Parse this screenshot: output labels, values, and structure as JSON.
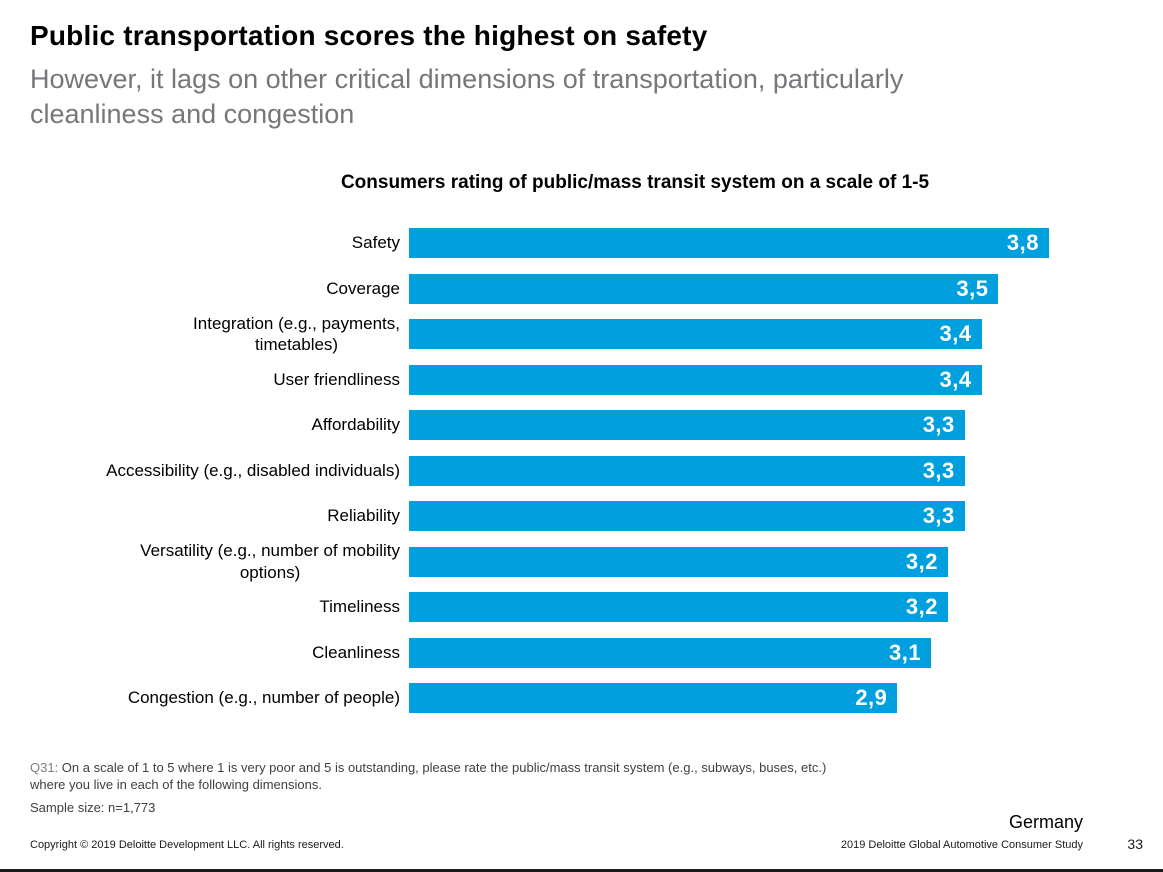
{
  "slide": {
    "title": "Public transportation scores the highest on safety",
    "subtitle": "However, it lags on other critical dimensions of transportation, particularly cleanliness and congestion",
    "footnote_prefix": "Q31:",
    "footnote_text": " On a scale of 1 to 5 where 1 is very poor and 5 is outstanding, please rate the public/mass transit system (e.g., subways, buses, etc.) where you live in each of the following dimensions.",
    "sample_size": "Sample size: n=1,773",
    "country": "Germany",
    "copyright": "Copyright © 2019 Deloitte Development LLC. All rights reserved.",
    "study": "2019 Deloitte Global Automotive Consumer Study",
    "page_number": "33"
  },
  "chart_data": {
    "type": "bar",
    "orientation": "horizontal",
    "title": "Consumers rating of public/mass transit system on a scale of 1-5",
    "categories": [
      "Safety",
      "Coverage",
      "Integration (e.g., payments,\ntimetables)",
      "User friendliness",
      "Affordability",
      "Accessibility (e.g., disabled individuals)",
      "Reliability",
      "Versatility (e.g., number of mobility\noptions)",
      "Timeliness",
      "Cleanliness",
      "Congestion (e.g., number of people)"
    ],
    "values": [
      3.8,
      3.5,
      3.4,
      3.4,
      3.3,
      3.3,
      3.3,
      3.2,
      3.2,
      3.1,
      2.9
    ],
    "value_labels": [
      "3,8",
      "3,5",
      "3,4",
      "3,4",
      "3,3",
      "3,3",
      "3,3",
      "3,2",
      "3,2",
      "3,1",
      "2,9"
    ],
    "rating_scale": [
      1,
      5
    ],
    "bar_scale_max": 3.8,
    "bar_color": "#00a0df",
    "value_label_color": "#ffffff",
    "grid": false,
    "legend": false
  }
}
